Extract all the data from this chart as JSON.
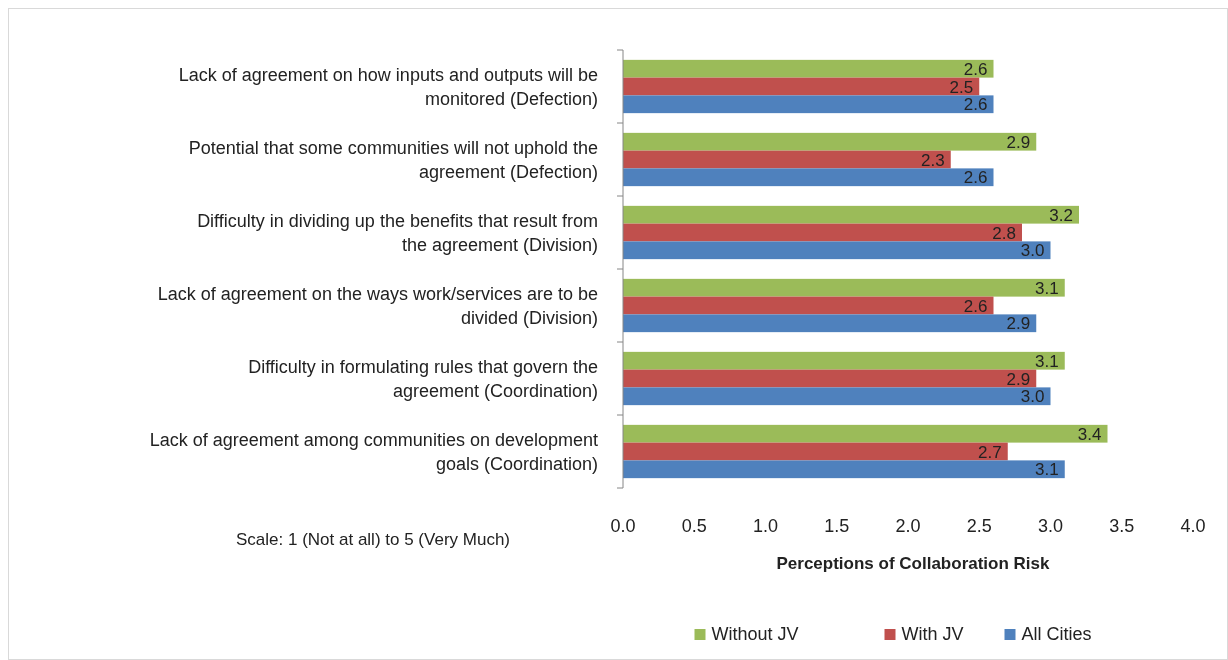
{
  "chart_data": {
    "type": "bar",
    "orientation": "horizontal",
    "xlabel": "Perceptions of Collaboration Risk",
    "categories": [
      "Lack of agreement on how inputs and outputs will be monitored (Defection)",
      "Potential that some communities will not uphold the agreement (Defection)",
      "Difficulty in dividing up the benefits that result from the agreement (Division)",
      "Lack of agreement on the ways work/services are to be divided (Division)",
      "Difficulty in formulating rules that govern the agreement (Coordination)",
      "Lack of agreement among communities on development goals (Coordination)"
    ],
    "series": [
      {
        "name": "Without JV",
        "color": "#9bbb59",
        "values": [
          2.6,
          2.9,
          3.2,
          3.1,
          3.1,
          3.4
        ],
        "value_labels": [
          "2.6",
          "2.9",
          "3.2",
          "3.1",
          "3.1",
          "3.4"
        ]
      },
      {
        "name": "With JV",
        "color": "#c0504d",
        "values": [
          2.5,
          2.3,
          2.8,
          2.6,
          2.9,
          2.7
        ],
        "value_labels": [
          "2.5",
          "2.3",
          "2.8",
          "2.6",
          "2.9",
          "2.7"
        ]
      },
      {
        "name": "All Cities",
        "color": "#4f81bd",
        "values": [
          2.6,
          2.6,
          3.0,
          2.9,
          3.0,
          3.1
        ],
        "value_labels": [
          "2.6",
          "2.6",
          "3.0",
          "2.9",
          "3.0",
          "3.1"
        ]
      }
    ],
    "xlim": [
      0,
      4
    ],
    "xticks": [
      {
        "value": 0,
        "label": "0.0"
      },
      {
        "value": 0.5,
        "label": "0.5"
      },
      {
        "value": 1,
        "label": "1.0"
      },
      {
        "value": 1.5,
        "label": "1.5"
      },
      {
        "value": 2,
        "label": "2.0"
      },
      {
        "value": 2.5,
        "label": "2.5"
      },
      {
        "value": 3,
        "label": "3.0"
      },
      {
        "value": 3.5,
        "label": "3.5"
      },
      {
        "value": 4,
        "label": "4.0"
      }
    ],
    "annotations": [
      "Scale: 1 (Not at all) to 5 (Very Much)"
    ],
    "legend": "bottom",
    "grid": false
  }
}
